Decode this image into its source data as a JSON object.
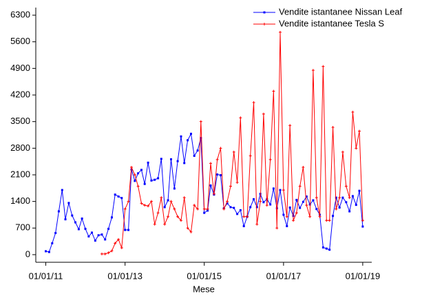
{
  "chart_data": {
    "type": "line",
    "x_label": "Mese",
    "x": [
      "2011-01-01",
      "2011-02-01",
      "2011-03-01",
      "2011-04-01",
      "2011-05-01",
      "2011-06-01",
      "2011-07-01",
      "2011-08-01",
      "2011-09-01",
      "2011-10-01",
      "2011-11-01",
      "2011-12-01",
      "2012-01-01",
      "2012-02-01",
      "2012-03-01",
      "2012-04-01",
      "2012-05-01",
      "2012-06-01",
      "2012-07-01",
      "2012-08-01",
      "2012-09-01",
      "2012-10-01",
      "2012-11-01",
      "2012-12-01",
      "2013-01-01",
      "2013-02-01",
      "2013-03-01",
      "2013-04-01",
      "2013-05-01",
      "2013-06-01",
      "2013-07-01",
      "2013-08-01",
      "2013-09-01",
      "2013-10-01",
      "2013-11-01",
      "2013-12-01",
      "2014-01-01",
      "2014-02-01",
      "2014-03-01",
      "2014-04-01",
      "2014-05-01",
      "2014-06-01",
      "2014-07-01",
      "2014-08-01",
      "2014-09-01",
      "2014-10-01",
      "2014-11-01",
      "2014-12-01",
      "2015-01-01",
      "2015-02-01",
      "2015-03-01",
      "2015-04-01",
      "2015-05-01",
      "2015-06-01",
      "2015-07-01",
      "2015-08-01",
      "2015-09-01",
      "2015-10-01",
      "2015-11-01",
      "2015-12-01",
      "2016-01-01",
      "2016-02-01",
      "2016-03-01",
      "2016-04-01",
      "2016-05-01",
      "2016-06-01",
      "2016-07-01",
      "2016-08-01",
      "2016-09-01",
      "2016-10-01",
      "2016-11-01",
      "2016-12-01",
      "2017-01-01",
      "2017-02-01",
      "2017-03-01",
      "2017-04-01",
      "2017-05-01",
      "2017-06-01",
      "2017-07-01",
      "2017-08-01",
      "2017-09-01",
      "2017-10-01",
      "2017-11-01",
      "2017-12-01",
      "2018-01-01",
      "2018-02-01",
      "2018-03-01",
      "2018-04-01",
      "2018-05-01",
      "2018-06-01",
      "2018-07-01",
      "2018-08-01",
      "2018-09-01",
      "2018-10-01",
      "2018-11-01",
      "2018-12-01",
      "2019-01-01"
    ],
    "series": [
      {
        "name": "Vendite istantanee Nissan Leaf",
        "color": "#0000ff",
        "marker": "square",
        "values": [
          90,
          70,
          300,
          570,
          1140,
          1700,
          930,
          1360,
          1030,
          850,
          670,
          950,
          680,
          480,
          580,
          370,
          510,
          530,
          400,
          680,
          980,
          1580,
          1530,
          1490,
          650,
          650,
          2240,
          1940,
          2140,
          2230,
          1860,
          2420,
          1950,
          1970,
          2010,
          2520,
          1250,
          1430,
          2510,
          1740,
          2460,
          3110,
          2410,
          3010,
          3180,
          2600,
          2740,
          3070,
          1100,
          1160,
          1820,
          1580,
          2110,
          2090,
          1220,
          1350,
          1250,
          1230,
          1070,
          1170,
          750,
          1000,
          1250,
          1460,
          1250,
          1600,
          1380,
          1460,
          1320,
          1740,
          1220,
          1700,
          1050,
          750,
          1240,
          1020,
          1440,
          1230,
          1390,
          1530,
          1320,
          1430,
          1200,
          1050,
          190,
          160,
          130,
          1020,
          1500,
          1240,
          1500,
          1380,
          1140,
          1540,
          1310,
          1680,
          740
        ]
      },
      {
        "name": "Vendite istantanee Tesla S",
        "color": "#ff0000",
        "marker": "cross",
        "values": [
          null,
          null,
          null,
          null,
          null,
          null,
          null,
          null,
          null,
          null,
          null,
          null,
          null,
          null,
          null,
          null,
          null,
          20,
          20,
          50,
          100,
          300,
          400,
          180,
          1200,
          1400,
          2300,
          2100,
          1800,
          1350,
          1300,
          1280,
          1400,
          800,
          1100,
          1500,
          800,
          1000,
          1400,
          1200,
          1000,
          900,
          1500,
          700,
          600,
          1300,
          1200,
          3500,
          1200,
          1200,
          2400,
          1600,
          2500,
          2800,
          1200,
          1400,
          1800,
          2700,
          1900,
          3600,
          1000,
          1000,
          2600,
          4000,
          800,
          1400,
          3700,
          1300,
          2500,
          4300,
          700,
          5850,
          1700,
          1000,
          3400,
          900,
          1100,
          1800,
          2300,
          1300,
          1000,
          4850,
          1500,
          1000,
          4950,
          900,
          900,
          3350,
          1200,
          1500,
          2700,
          1800,
          1500,
          3750,
          2800,
          3250,
          900
        ]
      }
    ],
    "xlim": [
      "2010-10-01",
      "2019-03-25"
    ],
    "xticks": [
      {
        "value": "2011-01-01",
        "label": "01/01/11"
      },
      {
        "value": "2013-01-01",
        "label": "01/01/13"
      },
      {
        "value": "2015-01-01",
        "label": "01/01/15"
      },
      {
        "value": "2017-01-01",
        "label": "01/01/17"
      },
      {
        "value": "2019-01-01",
        "label": "01/01/19"
      }
    ],
    "ylim": [
      -200,
      6500
    ],
    "yticks": [
      0,
      700,
      1400,
      2100,
      2800,
      3500,
      4200,
      4900,
      5600,
      6300
    ],
    "grid": false,
    "legend": "top-right"
  }
}
